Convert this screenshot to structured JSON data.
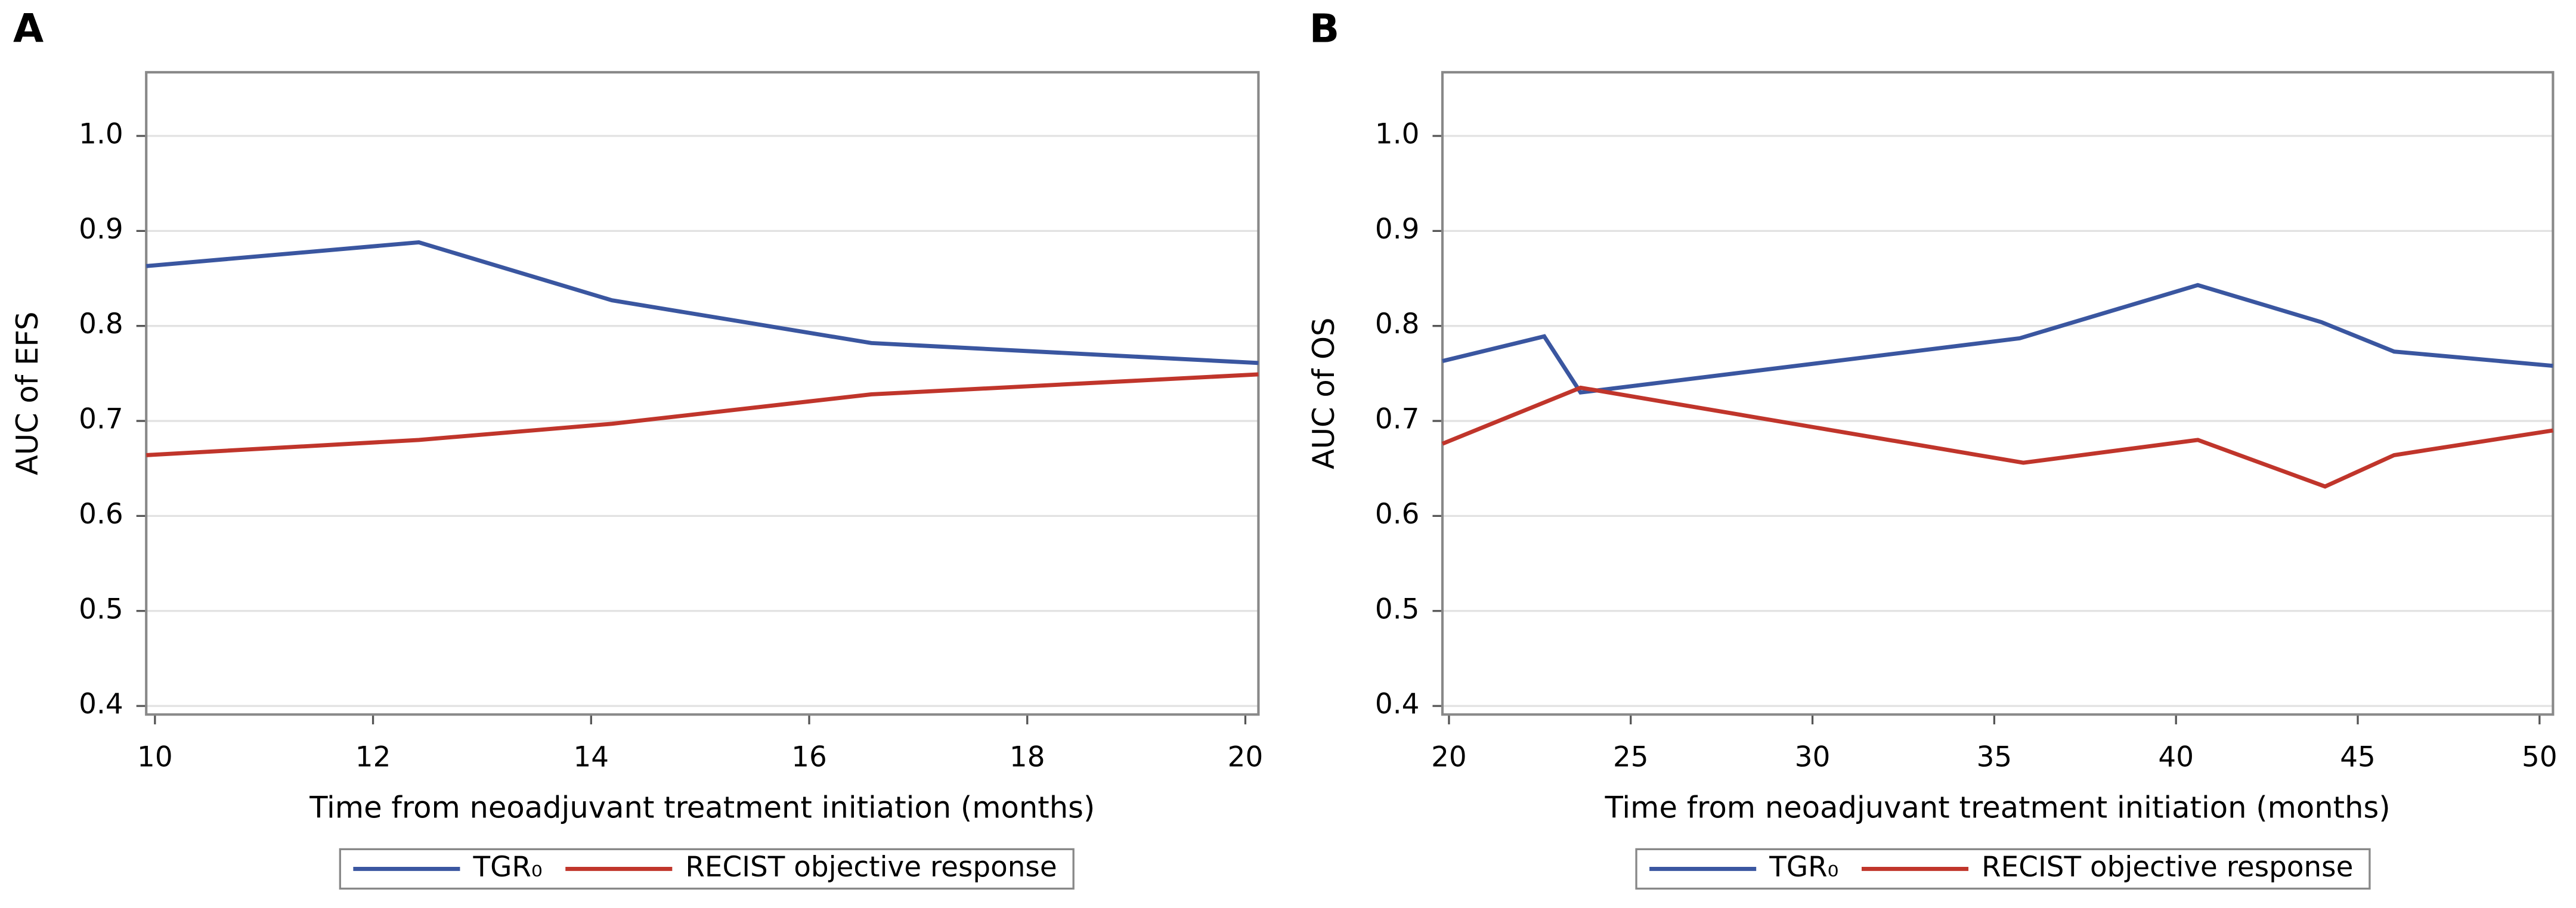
{
  "chart_data": [
    {
      "type": "line",
      "panel_label": "A",
      "x_label": "Time from neoadjuvant treatment initiation (months)",
      "y_label": "AUC of EFS",
      "xlim": [
        9.92,
        20.12
      ],
      "xticks": [
        10,
        12,
        14,
        16,
        18,
        20
      ],
      "ylim": [
        0.391,
        1.067
      ],
      "yticks": [
        0.4,
        0.5,
        0.6,
        0.7,
        0.8,
        0.9,
        {
          "value": 1,
          "label": "1.0"
        }
      ],
      "grid": true,
      "legend": "bottom",
      "series": [
        {
          "name": "TGR₀",
          "color": "#3a56a0",
          "x": [
            9.92,
            12.42,
            14.19,
            16.57,
            20.12
          ],
          "values": [
            0.863,
            0.888,
            0.827,
            0.782,
            0.761
          ]
        },
        {
          "name": "RECIST objective response",
          "color": "#c0352b",
          "x": [
            9.92,
            12.42,
            14.19,
            16.57,
            20.12
          ],
          "values": [
            0.664,
            0.68,
            0.697,
            0.728,
            0.749
          ]
        }
      ]
    },
    {
      "type": "line",
      "panel_label": "B",
      "x_label": "Time from neoadjuvant treatment initiation (months)",
      "y_label": "AUC of OS",
      "xlim": [
        19.82,
        50.37
      ],
      "xticks": [
        20,
        25,
        30,
        35,
        40,
        45,
        50
      ],
      "ylim": [
        0.391,
        1.067
      ],
      "yticks": [
        0.4,
        0.5,
        0.6,
        0.7,
        0.8,
        0.9,
        {
          "value": 1,
          "label": "1.0"
        }
      ],
      "grid": true,
      "legend": "bottom",
      "series": [
        {
          "name": "TGR₀",
          "color": "#3a56a0",
          "x": [
            19.82,
            22.62,
            23.62,
            35.7,
            40.6,
            44.0,
            46.0,
            50.37
          ],
          "values": [
            0.763,
            0.789,
            0.73,
            0.787,
            0.843,
            0.804,
            0.773,
            0.758
          ]
        },
        {
          "name": "RECIST objective response",
          "color": "#c0352b",
          "x": [
            19.82,
            23.62,
            35.8,
            40.6,
            44.1,
            46.0,
            50.37
          ],
          "values": [
            0.676,
            0.735,
            0.656,
            0.68,
            0.631,
            0.664,
            0.69
          ]
        }
      ]
    }
  ]
}
